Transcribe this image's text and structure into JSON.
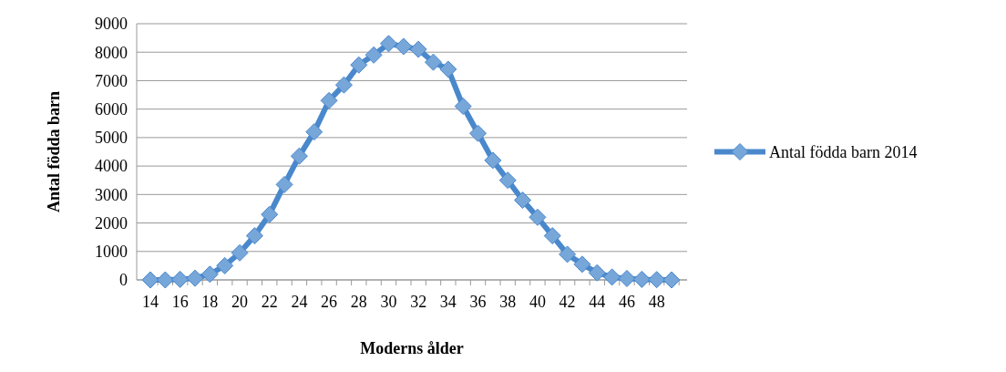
{
  "chart_data": {
    "type": "line",
    "xlabel": "Moderns ålder",
    "ylabel": "Antal födda barn",
    "categories": [
      "14",
      null,
      "16",
      null,
      "18",
      null,
      "20",
      null,
      "22",
      null,
      "24",
      null,
      "26",
      null,
      "28",
      null,
      "30",
      null,
      "32",
      null,
      "34",
      null,
      "36",
      null,
      "38",
      null,
      "40",
      null,
      "42",
      null,
      "44",
      null,
      "46",
      null,
      "48",
      null
    ],
    "series": [
      {
        "name": "Antal födda barn 2014",
        "color": "#4a88cc",
        "values": [
          0,
          0,
          20,
          60,
          200,
          500,
          950,
          1550,
          2300,
          3350,
          4350,
          5200,
          6300,
          6850,
          7550,
          7900,
          8300,
          8200,
          8100,
          7650,
          7400,
          6100,
          5150,
          4200,
          3500,
          2800,
          2200,
          1550,
          900,
          550,
          250,
          100,
          50,
          20,
          10,
          0
        ]
      }
    ],
    "ylim": [
      0,
      9000
    ],
    "yticks": [
      0,
      1000,
      2000,
      3000,
      4000,
      5000,
      6000,
      7000,
      8000,
      9000
    ],
    "grid": "y",
    "legend": "right",
    "marker": "diamond",
    "line_style": "solid"
  }
}
